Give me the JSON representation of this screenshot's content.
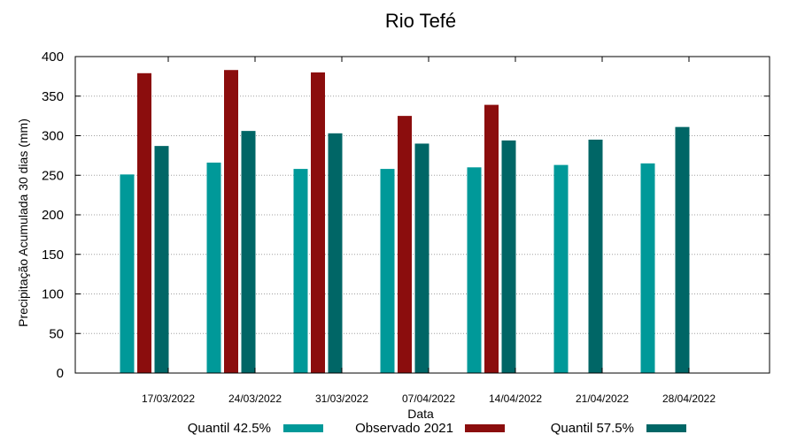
{
  "chart_data": {
    "type": "bar",
    "title": "Rio Tefé",
    "xlabel": "Data",
    "ylabel": "Precipitação Acumulada 30 dias (mm)",
    "ylim": [
      0,
      400
    ],
    "yticks": [
      0,
      50,
      100,
      150,
      200,
      250,
      300,
      350,
      400
    ],
    "categories": [
      "17/03/2022",
      "24/03/2022",
      "31/03/2022",
      "07/04/2022",
      "14/04/2022",
      "21/04/2022",
      "28/04/2022"
    ],
    "series": [
      {
        "name": "Quantil 42.5%",
        "color": "#009999",
        "values": [
          251,
          266,
          258,
          258,
          260,
          263,
          265
        ]
      },
      {
        "name": "Observado 2021",
        "color": "#8b0d0d",
        "values": [
          379,
          383,
          380,
          325,
          339,
          null,
          null
        ]
      },
      {
        "name": "Quantil 57.5%",
        "color": "#006666",
        "values": [
          287,
          306,
          303,
          290,
          294,
          295,
          311
        ]
      }
    ],
    "grid": true,
    "legend_position": "bottom"
  }
}
